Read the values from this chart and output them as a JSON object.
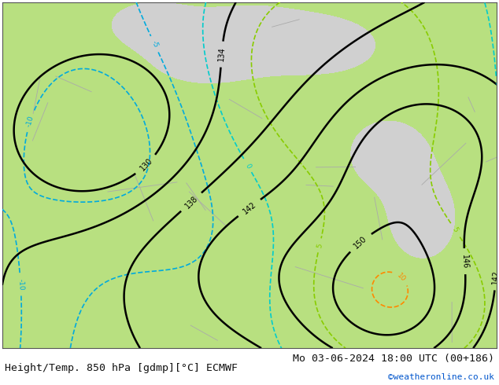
{
  "title_left": "Height/Temp. 850 hPa [gdmp][°C] ECMWF",
  "title_right": "Mo 03-06-2024 18:00 UTC (00+186)",
  "credit": "©weatheronline.co.uk",
  "background_color": "#ffffff",
  "map_bg_color_land": "#b8e080",
  "sea_color": "#d0d0d0",
  "height_contour_color": "#000000",
  "temp_neg_color_blue": "#00aadd",
  "temp_neg_color_cyan": "#00cccc",
  "temp_pos_color_orange": "#ff8800",
  "temp_pos_color_red": "#ff2200",
  "temp_pos_color_pink": "#ff44aa",
  "temp_pos_color_yg": "#88cc00",
  "title_fontsize": 9.5,
  "credit_fontsize": 8
}
